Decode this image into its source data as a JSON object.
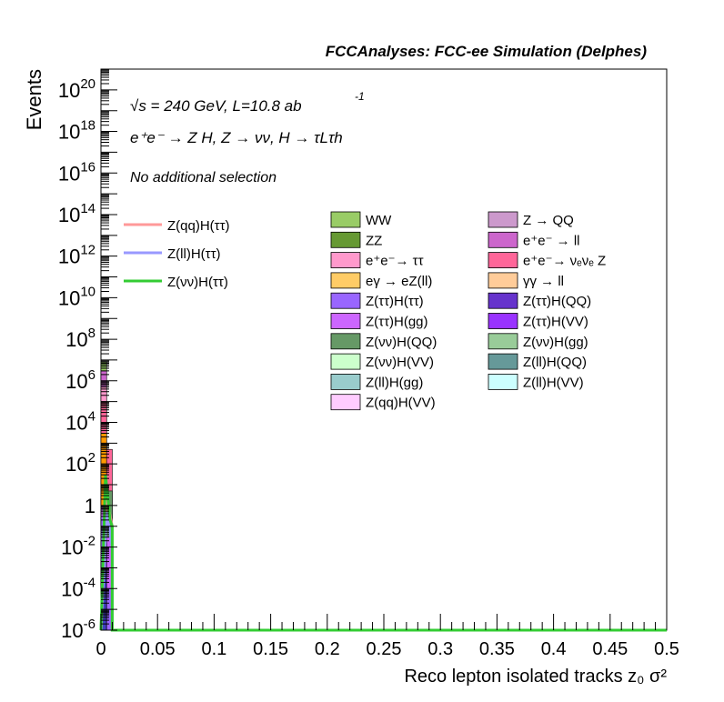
{
  "header": {
    "title": "FCCAnalyses: FCC-ee Simulation (Delphes)"
  },
  "annotations": {
    "energy": "√s = 240 GeV, L=10.8 ab",
    "lumi_exp": "-1",
    "process": "e⁺e⁻ → Z H, Z → νν, H → τLτh",
    "selection": "No additional selection"
  },
  "chart_data": {
    "type": "bar",
    "stacked": true,
    "log_y": true,
    "xlabel": "Reco lepton isolated tracks z₀ σ²",
    "ylabel": "Events",
    "xlim": [
      0,
      0.5
    ],
    "ylim": [
      1e-06,
      1e+21
    ],
    "x_ticks": [
      "0",
      "0.05",
      "0.1",
      "0.15",
      "0.2",
      "0.25",
      "0.3",
      "0.35",
      "0.4",
      "0.45",
      "0.5"
    ],
    "y_ticks": [
      {
        "v": 1e+20,
        "label": "10^20"
      },
      {
        "v": 1e+18,
        "label": "10^18"
      },
      {
        "v": 1e+16,
        "label": "10^16"
      },
      {
        "v": 100000000000000.0,
        "label": "10^14"
      },
      {
        "v": 1000000000000.0,
        "label": "10^12"
      },
      {
        "v": 10000000000.0,
        "label": "10^10"
      },
      {
        "v": 100000000.0,
        "label": "10^8"
      },
      {
        "v": 1000000.0,
        "label": "10^6"
      },
      {
        "v": 10000.0,
        "label": "10^4"
      },
      {
        "v": 100.0,
        "label": "10^2"
      },
      {
        "v": 1,
        "label": "1"
      },
      {
        "v": 0.01,
        "label": "10^-2"
      },
      {
        "v": 0.0001,
        "label": "10^-4"
      },
      {
        "v": 1e-06,
        "label": "10^-6"
      }
    ],
    "stack_bins": [
      {
        "x0": 0,
        "x1": 0.005,
        "layers": [
          {
            "top": 0.001,
            "color": "#4040c0"
          },
          {
            "top": 0.3,
            "color": "#9966ff"
          },
          {
            "top": 1,
            "color": "#cc66ff"
          },
          {
            "top": 3000,
            "color": "#ff9900"
          },
          {
            "top": 100000.0,
            "color": "#ff6699"
          },
          {
            "top": 500000.0,
            "color": "#ff99cc"
          },
          {
            "top": 3000000.0,
            "color": "#cc66cc"
          },
          {
            "top": 8000000.0,
            "color": "#99cc66"
          }
        ]
      },
      {
        "x0": 0.005,
        "x1": 0.01,
        "layers": [
          {
            "top": 0.0001,
            "color": "#9966ff"
          },
          {
            "top": 0.03,
            "color": "#cc66ff"
          },
          {
            "top": 5,
            "color": "#669966"
          },
          {
            "top": 500,
            "color": "#ff6699"
          }
        ]
      }
    ],
    "series": [
      {
        "name": "Z(qq)H(ττ)",
        "color": "#ff9999",
        "points": [
          [
            0,
            1e-06
          ],
          [
            0.005,
            2
          ],
          [
            0.01,
            0.1
          ],
          [
            0.01,
            1e-06
          ],
          [
            0.5,
            1e-06
          ]
        ]
      },
      {
        "name": "Z(ll)H(ττ)",
        "color": "#9999ff",
        "points": [
          [
            0,
            1e-06
          ],
          [
            0.005,
            0.5
          ],
          [
            0.01,
            0.01
          ],
          [
            0.01,
            1e-06
          ],
          [
            0.5,
            1e-06
          ]
        ]
      },
      {
        "name": "Z(νν)H(ττ)",
        "color": "#33cc33",
        "points": [
          [
            0,
            1e-06
          ],
          [
            0.004,
            30
          ],
          [
            0.008,
            0.2
          ],
          [
            0.01,
            0.1
          ],
          [
            0.01,
            1e-06
          ],
          [
            0.5,
            1e-06
          ]
        ]
      }
    ],
    "legend_stack": [
      {
        "label": "WW",
        "color": "#99cc66"
      },
      {
        "label": "Z → QQ",
        "color": "#cc99cc"
      },
      {
        "label": "ZZ",
        "color": "#669933"
      },
      {
        "label": "e⁺e⁻ → ll",
        "color": "#cc66cc"
      },
      {
        "label": "e⁺e⁻→ ττ",
        "color": "#ff99cc"
      },
      {
        "label": "e⁺e⁻→ νₑνₑ Z",
        "color": "#ff6699"
      },
      {
        "label": "eγ → eZ(ll)",
        "color": "#ffcc66"
      },
      {
        "label": "γγ → ll",
        "color": "#ffcc99"
      },
      {
        "label": "Z(ττ)H(ττ)",
        "color": "#9966ff"
      },
      {
        "label": "Z(ττ)H(QQ)",
        "color": "#6633cc"
      },
      {
        "label": "Z(ττ)H(gg)",
        "color": "#cc66ff"
      },
      {
        "label": "Z(ττ)H(VV)",
        "color": "#9933ff"
      },
      {
        "label": "Z(νν)H(QQ)",
        "color": "#669966"
      },
      {
        "label": "Z(νν)H(gg)",
        "color": "#99cc99"
      },
      {
        "label": "Z(νν)H(VV)",
        "color": "#ccffcc"
      },
      {
        "label": "Z(ll)H(QQ)",
        "color": "#669999"
      },
      {
        "label": "Z(ll)H(gg)",
        "color": "#99cccc"
      },
      {
        "label": "Z(ll)H(VV)",
        "color": "#ccffff"
      },
      {
        "label": "Z(qq)H(VV)",
        "color": "#ffccff"
      }
    ]
  }
}
